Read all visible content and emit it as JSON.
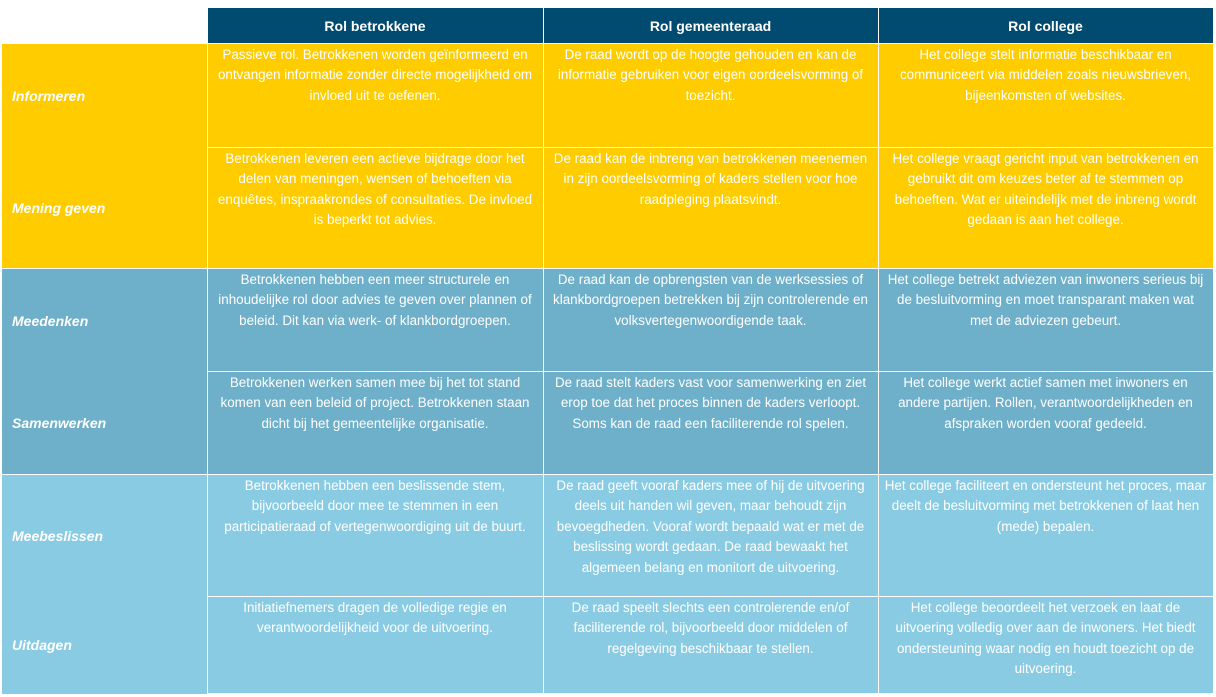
{
  "header": {
    "col1": "Rol betrokkene",
    "col2": "Rol gemeenteraad",
    "col3": "Rol college"
  },
  "rows": [
    {
      "label": "Informeren",
      "betrokkene": "Passieve rol. Betrokkenen worden geïnformeerd en ontvangen informatie zonder directe mogelijkheid om invloed uit te oefenen.",
      "gemeenteraad": "De raad wordt op de hoogte gehouden en kan de informatie gebruiken voor eigen oordeelsvorming of toezicht.",
      "college": "Het college stelt informatie beschikbaar en communiceert via middelen zoals nieuwsbrieven, bijeenkomsten of websites."
    },
    {
      "label": "Mening geven",
      "betrokkene": "Betrokkenen leveren een actieve bijdrage door het delen van meningen, wensen of behoeften via enquêtes, inspraakrondes of consultaties. De invloed is beperkt tot advies.",
      "gemeenteraad": "De raad kan de inbreng van betrokkenen meenemen in zijn oordeelsvorming of kaders stellen voor hoe raadpleging plaatsvindt.",
      "college": "Het college vraagt gericht input van betrokkenen en gebruikt dit om keuzes beter af te stemmen op behoeften. Wat er uiteindelijk met de inbreng wordt gedaan is aan het college."
    },
    {
      "label": "Meedenken",
      "betrokkene": "Betrokkenen hebben een meer structurele en inhoudelijke rol door advies te geven over plannen of beleid. Dit kan via werk- of klankbordgroepen.",
      "gemeenteraad": "De raad kan de opbrengsten van de werksessies of klankbordgroepen betrekken bij zijn controlerende en volksvertegenwoordigende taak.",
      "college": "Het college betrekt adviezen van inwoners serieus bij de besluitvorming en moet transparant maken wat met de adviezen gebeurt."
    },
    {
      "label": "Samenwerken",
      "betrokkene": "Betrokkenen werken samen mee bij het tot stand komen van een beleid of project. Betrokkenen staan dicht bij het gemeentelijke organisatie.",
      "gemeenteraad": "De raad stelt kaders vast voor samenwerking en ziet erop toe dat het proces binnen de kaders verloopt. Soms kan de raad een faciliterende rol spelen.",
      "college": "Het college werkt actief samen met inwoners en andere partijen. Rollen, verantwoordelijkheden en afspraken worden vooraf gedeeld."
    },
    {
      "label": "Meebeslissen",
      "betrokkene": "Betrokkenen hebben een beslissende stem, bijvoorbeeld door mee te stemmen in een participatieraad of vertegenwoordiging uit de buurt.",
      "gemeenteraad": "De raad geeft vooraf kaders mee of hij de uitvoering deels uit handen wil geven, maar behoudt zijn bevoegdheden. Vooraf wordt bepaald wat er met de beslissing wordt gedaan. De raad bewaakt het algemeen belang en monitort de uitvoering.",
      "college": "Het college faciliteert en ondersteunt het proces, maar deelt de besluitvorming met betrokkenen of laat hen (mede) bepalen."
    },
    {
      "label": "Uitdagen",
      "betrokkene": "Initiatiefnemers dragen de volledige regie en verantwoordelijkheid voor de uitvoering.",
      "gemeenteraad": "De raad speelt slechts een controlerende en/of faciliterende rol, bijvoorbeeld door middelen of regelgeving beschikbaar te stellen.",
      "college": "Het college beoordeelt het verzoek en laat de uitvoering volledig over aan de inwoners. Het biedt ondersteuning waar nodig en houdt toezicht op de uitvoering."
    }
  ],
  "colors": {
    "header": "#014a70",
    "yellow": "#ffcc00",
    "mid_blue": "#6eafc9",
    "light_blue": "#8acbe4"
  }
}
